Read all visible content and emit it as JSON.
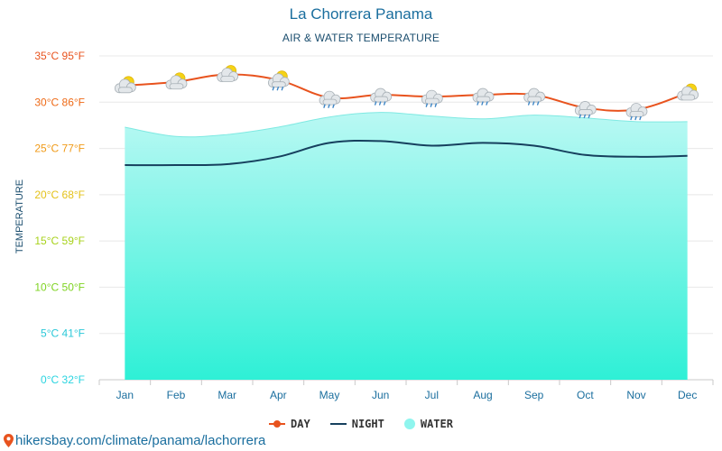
{
  "title": "La Chorrera Panama",
  "subtitle": "AIR & WATER TEMPERATURE",
  "source": "hikersbay.com/climate/panama/lachorrera",
  "chart_data": {
    "type": "line",
    "categories": [
      "Jan",
      "Feb",
      "Mar",
      "Apr",
      "May",
      "Jun",
      "Jul",
      "Aug",
      "Sep",
      "Oct",
      "Nov",
      "Dec"
    ],
    "series": [
      {
        "name": "DAY",
        "color": "#e8531e",
        "values": [
          31.8,
          32.2,
          33.0,
          32.4,
          30.5,
          30.8,
          30.6,
          30.8,
          30.8,
          29.4,
          29.2,
          31.0
        ]
      },
      {
        "name": "NIGHT",
        "color": "#16405e",
        "values": [
          23.2,
          23.2,
          23.3,
          24.1,
          25.6,
          25.8,
          25.3,
          25.6,
          25.3,
          24.3,
          24.1,
          24.2
        ]
      },
      {
        "name": "WATER",
        "color": "#8ff5ee",
        "values": [
          27.3,
          26.3,
          26.5,
          27.3,
          28.4,
          28.9,
          28.5,
          28.2,
          28.6,
          28.3,
          27.9,
          27.9
        ]
      }
    ],
    "weather_icons": [
      "partly-cloudy",
      "partly-cloudy",
      "partly-cloudy",
      "partly-cloudy-rain",
      "cloud-rain",
      "cloud-rain",
      "cloud-rain",
      "cloud-rain",
      "cloud-rain",
      "cloud-rain",
      "cloud-rain",
      "partly-cloudy"
    ],
    "y_ticks": [
      {
        "value": 0,
        "label": "0°C 32°F",
        "color": "#2ad4e0"
      },
      {
        "value": 5,
        "label": "5°C 41°F",
        "color": "#2ac8d8"
      },
      {
        "value": 10,
        "label": "10°C 50°F",
        "color": "#7ed321"
      },
      {
        "value": 15,
        "label": "15°C 59°F",
        "color": "#a8d21c"
      },
      {
        "value": 20,
        "label": "20°C 68°F",
        "color": "#e4c21a"
      },
      {
        "value": 25,
        "label": "25°C 77°F",
        "color": "#f09a18"
      },
      {
        "value": 30,
        "label": "30°C 86°F",
        "color": "#ee6a17"
      },
      {
        "value": 35,
        "label": "35°C 95°F",
        "color": "#e8531e"
      }
    ],
    "ylabel": "TEMPERATURE",
    "xlabel": "",
    "ylim": [
      0,
      35
    ],
    "grid": true,
    "legend_position": "bottom-center"
  }
}
